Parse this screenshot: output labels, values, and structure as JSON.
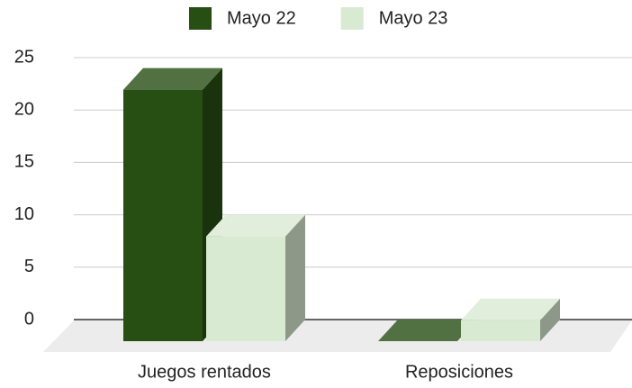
{
  "chart_data": {
    "type": "bar3d",
    "categories": [
      "Juegos rentados",
      "Reposiciones"
    ],
    "series": [
      {
        "name": "Mayo 22",
        "color": "#274e13",
        "values": [
          24,
          0
        ]
      },
      {
        "name": "Mayo 23",
        "color": "#d9ead3",
        "values": [
          10,
          2
        ]
      }
    ],
    "ylim": [
      0,
      25
    ],
    "yticks": [
      0,
      5,
      10,
      15,
      20,
      25
    ],
    "grid": true,
    "legend": "top"
  }
}
